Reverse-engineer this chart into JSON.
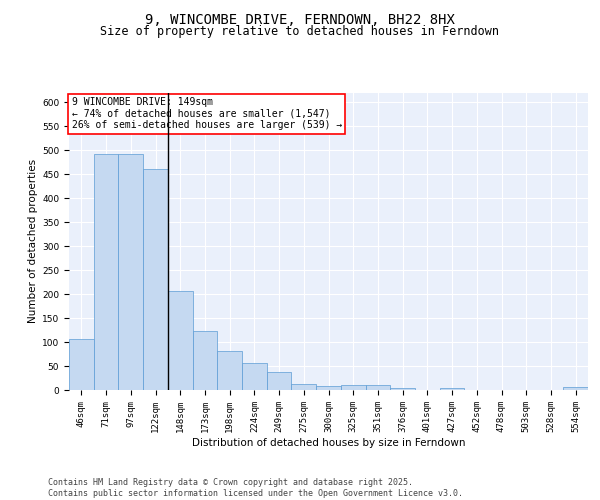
{
  "title_line1": "9, WINCOMBE DRIVE, FERNDOWN, BH22 8HX",
  "title_line2": "Size of property relative to detached houses in Ferndown",
  "xlabel": "Distribution of detached houses by size in Ferndown",
  "ylabel": "Number of detached properties",
  "categories": [
    "46sqm",
    "71sqm",
    "97sqm",
    "122sqm",
    "148sqm",
    "173sqm",
    "198sqm",
    "224sqm",
    "249sqm",
    "275sqm",
    "300sqm",
    "325sqm",
    "351sqm",
    "376sqm",
    "401sqm",
    "427sqm",
    "452sqm",
    "478sqm",
    "503sqm",
    "528sqm",
    "554sqm"
  ],
  "values": [
    106,
    491,
    491,
    460,
    207,
    124,
    81,
    57,
    38,
    13,
    8,
    10,
    10,
    4,
    0,
    5,
    0,
    0,
    0,
    0,
    6
  ],
  "bar_color": "#c5d9f1",
  "bar_edge_color": "#5b9bd5",
  "annotation_text": "9 WINCOMBE DRIVE: 149sqm\n← 74% of detached houses are smaller (1,547)\n26% of semi-detached houses are larger (539) →",
  "annotation_box_color": "white",
  "annotation_box_edge_color": "red",
  "vline_x_index": 4,
  "ylim": [
    0,
    620
  ],
  "yticks": [
    0,
    50,
    100,
    150,
    200,
    250,
    300,
    350,
    400,
    450,
    500,
    550,
    600
  ],
  "bg_color": "#eaf0fb",
  "grid_color": "white",
  "footer_text": "Contains HM Land Registry data © Crown copyright and database right 2025.\nContains public sector information licensed under the Open Government Licence v3.0.",
  "title_fontsize": 10,
  "subtitle_fontsize": 8.5,
  "axis_label_fontsize": 7.5,
  "tick_fontsize": 6.5,
  "annotation_fontsize": 7,
  "footer_fontsize": 6
}
